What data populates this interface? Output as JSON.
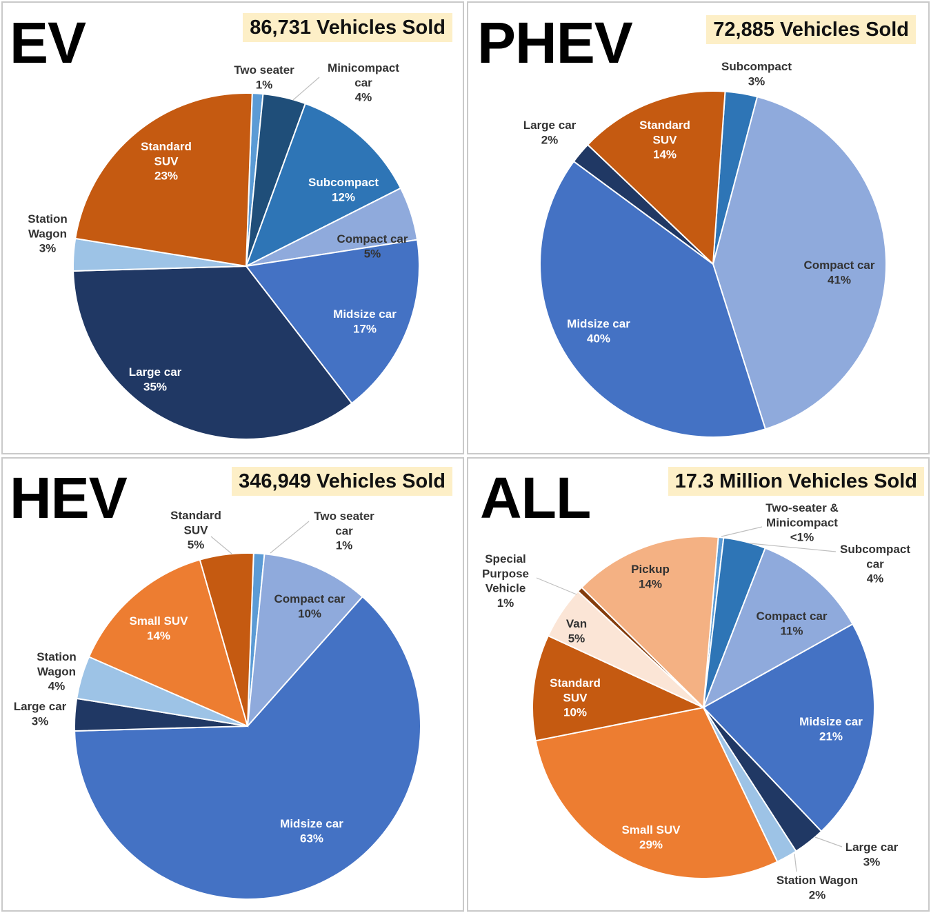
{
  "colors": {
    "two_seater": "#5b9bd5",
    "minicompact": "#1f4e79",
    "subcompact": "#2e75b6",
    "compact": "#8faadc",
    "midsize": "#4472c4",
    "large": "#203864",
    "station_wagon": "#9dc3e6",
    "standard_suv": "#c55a11",
    "small_suv": "#ed7d31",
    "pickup": "#f4b183",
    "van": "#fbe5d6",
    "special": "#843c0c",
    "highlight": "#fdefc7"
  },
  "chart_data": [
    {
      "type": "pie",
      "title": "EV",
      "subtitle": "86,731 Vehicles Sold",
      "slices": [
        {
          "key": "two_seater",
          "lines": [
            "Two seater",
            "1%"
          ],
          "value": 1
        },
        {
          "key": "minicompact",
          "lines": [
            "Minicompact",
            "car",
            "4%"
          ],
          "value": 4
        },
        {
          "key": "subcompact",
          "lines": [
            "Subcompact",
            "12%"
          ],
          "value": 12
        },
        {
          "key": "compact",
          "lines": [
            "Compact car",
            "5%"
          ],
          "value": 5
        },
        {
          "key": "midsize",
          "lines": [
            "Midsize car",
            "17%"
          ],
          "value": 17
        },
        {
          "key": "large",
          "lines": [
            "Large car",
            "35%"
          ],
          "value": 35
        },
        {
          "key": "station_wagon",
          "lines": [
            "Station",
            "Wagon",
            "3%"
          ],
          "value": 3
        },
        {
          "key": "standard_suv",
          "lines": [
            "Standard",
            "SUV",
            "23%"
          ],
          "value": 23
        }
      ]
    },
    {
      "type": "pie",
      "title": "PHEV",
      "subtitle": "72,885 Vehicles Sold",
      "slices": [
        {
          "key": "subcompact",
          "lines": [
            "Subcompact",
            "3%"
          ],
          "value": 3
        },
        {
          "key": "compact",
          "lines": [
            "Compact car",
            "41%"
          ],
          "value": 41
        },
        {
          "key": "midsize",
          "lines": [
            "Midsize car",
            "40%"
          ],
          "value": 40
        },
        {
          "key": "large",
          "lines": [
            "Large car",
            "2%"
          ],
          "value": 2
        },
        {
          "key": "standard_suv",
          "lines": [
            "Standard",
            "SUV",
            "14%"
          ],
          "value": 14
        }
      ]
    },
    {
      "type": "pie",
      "title": "HEV",
      "subtitle": "346,949 Vehicles Sold",
      "slices": [
        {
          "key": "two_seater",
          "lines": [
            "Two seater",
            "car",
            "1%"
          ],
          "value": 1
        },
        {
          "key": "compact",
          "lines": [
            "Compact car",
            "10%"
          ],
          "value": 10
        },
        {
          "key": "midsize",
          "lines": [
            "Midsize car",
            "63%"
          ],
          "value": 63
        },
        {
          "key": "large",
          "lines": [
            "Large car",
            "3%"
          ],
          "value": 3
        },
        {
          "key": "station_wagon",
          "lines": [
            "Station",
            "Wagon",
            "4%"
          ],
          "value": 4
        },
        {
          "key": "small_suv",
          "lines": [
            "Small SUV",
            "14%"
          ],
          "value": 14
        },
        {
          "key": "standard_suv",
          "lines": [
            "Standard",
            "SUV",
            "5%"
          ],
          "value": 5
        }
      ]
    },
    {
      "type": "pie",
      "title": "ALL",
      "subtitle": "17.3 Million Vehicles Sold",
      "slices": [
        {
          "key": "two_seater",
          "lines": [
            "Two-seater &",
            "Minicompact",
            "<1%"
          ],
          "value": 0.5
        },
        {
          "key": "subcompact",
          "lines": [
            "Subcompact",
            "car",
            "4%"
          ],
          "value": 4
        },
        {
          "key": "compact",
          "lines": [
            "Compact car",
            "11%"
          ],
          "value": 11
        },
        {
          "key": "midsize",
          "lines": [
            "Midsize car",
            "21%"
          ],
          "value": 21
        },
        {
          "key": "large",
          "lines": [
            "Large car",
            "3%"
          ],
          "value": 3
        },
        {
          "key": "station_wagon",
          "lines": [
            "Station Wagon",
            "2%"
          ],
          "value": 2
        },
        {
          "key": "small_suv",
          "lines": [
            "Small SUV",
            "29%"
          ],
          "value": 29
        },
        {
          "key": "standard_suv",
          "lines": [
            "Standard",
            "SUV",
            "10%"
          ],
          "value": 10
        },
        {
          "key": "van",
          "lines": [
            "Van",
            "5%"
          ],
          "value": 5
        },
        {
          "key": "special",
          "lines": [
            "Special",
            "Purpose",
            "Vehicle",
            "1%"
          ],
          "value": 0.5
        },
        {
          "key": "pickup",
          "lines": [
            "Pickup",
            "14%"
          ],
          "value": 14
        }
      ]
    }
  ]
}
